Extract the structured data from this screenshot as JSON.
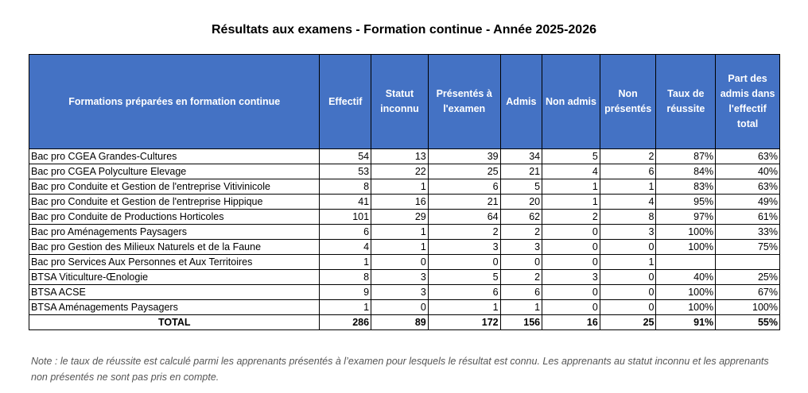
{
  "title": "Résultats aux examens - Formation continue - Année 2025-2026",
  "headers": [
    "Formations préparées en formation continue",
    "Effectif",
    "Statut inconnu",
    "Présentés à l'examen",
    "Admis",
    "Non admis",
    "Non présentés",
    "Taux de réussite",
    "Part des admis dans l'effectif total"
  ],
  "rows": [
    {
      "name": "Bac pro CGEA Grandes-Cultures",
      "effectif": "54",
      "statut_inconnu": "13",
      "presentes": "39",
      "admis": "34",
      "non_admis": "5",
      "non_presentes": "2",
      "taux": "87%",
      "part": "63%"
    },
    {
      "name": "Bac pro CGEA Polyculture Elevage",
      "effectif": "53",
      "statut_inconnu": "22",
      "presentes": "25",
      "admis": "21",
      "non_admis": "4",
      "non_presentes": "6",
      "taux": "84%",
      "part": "40%"
    },
    {
      "name": "Bac pro Conduite et Gestion de l'entreprise Vitivinicole",
      "effectif": "8",
      "statut_inconnu": "1",
      "presentes": "6",
      "admis": "5",
      "non_admis": "1",
      "non_presentes": "1",
      "taux": "83%",
      "part": "63%"
    },
    {
      "name": "Bac pro Conduite et Gestion de l'entreprise Hippique",
      "effectif": "41",
      "statut_inconnu": "16",
      "presentes": "21",
      "admis": "20",
      "non_admis": "1",
      "non_presentes": "4",
      "taux": "95%",
      "part": "49%"
    },
    {
      "name": "Bac pro Conduite de Productions Horticoles",
      "effectif": "101",
      "statut_inconnu": "29",
      "presentes": "64",
      "admis": "62",
      "non_admis": "2",
      "non_presentes": "8",
      "taux": "97%",
      "part": "61%"
    },
    {
      "name": "Bac pro Aménagements Paysagers",
      "effectif": "6",
      "statut_inconnu": "1",
      "presentes": "2",
      "admis": "2",
      "non_admis": "0",
      "non_presentes": "3",
      "taux": "100%",
      "part": "33%"
    },
    {
      "name": "Bac pro Gestion des Milieux Naturels et de la Faune",
      "effectif": "4",
      "statut_inconnu": "1",
      "presentes": "3",
      "admis": "3",
      "non_admis": "0",
      "non_presentes": "0",
      "taux": "100%",
      "part": "75%"
    },
    {
      "name": "Bac pro Services Aux Personnes et Aux Territoires",
      "effectif": "1",
      "statut_inconnu": "0",
      "presentes": "0",
      "admis": "0",
      "non_admis": "0",
      "non_presentes": "1",
      "taux": "",
      "part": ""
    },
    {
      "name": "BTSA Viticulture-Œnologie",
      "effectif": "8",
      "statut_inconnu": "3",
      "presentes": "5",
      "admis": "2",
      "non_admis": "3",
      "non_presentes": "0",
      "taux": "40%",
      "part": "25%"
    },
    {
      "name": "BTSA ACSE",
      "effectif": "9",
      "statut_inconnu": "3",
      "presentes": "6",
      "admis": "6",
      "non_admis": "0",
      "non_presentes": "0",
      "taux": "100%",
      "part": "67%"
    },
    {
      "name": "BTSA Aménagements Paysagers",
      "effectif": "1",
      "statut_inconnu": "0",
      "presentes": "1",
      "admis": "1",
      "non_admis": "0",
      "non_presentes": "0",
      "taux": "100%",
      "part": "100%"
    }
  ],
  "total": {
    "name": "TOTAL",
    "effectif": "286",
    "statut_inconnu": "89",
    "presentes": "172",
    "admis": "156",
    "non_admis": "16",
    "non_presentes": "25",
    "taux": "91%",
    "part": "55%"
  },
  "note": "Note : le taux de réussite est calculé parmi les apprenants présentés à l’examen pour lesquels le résultat est connu. Les apprenants au statut inconnu et les apprenants non présentés ne sont pas pris en compte.",
  "colors": {
    "header_bg": "#4472c4",
    "header_text": "#ffffff",
    "note_text": "#555555"
  }
}
